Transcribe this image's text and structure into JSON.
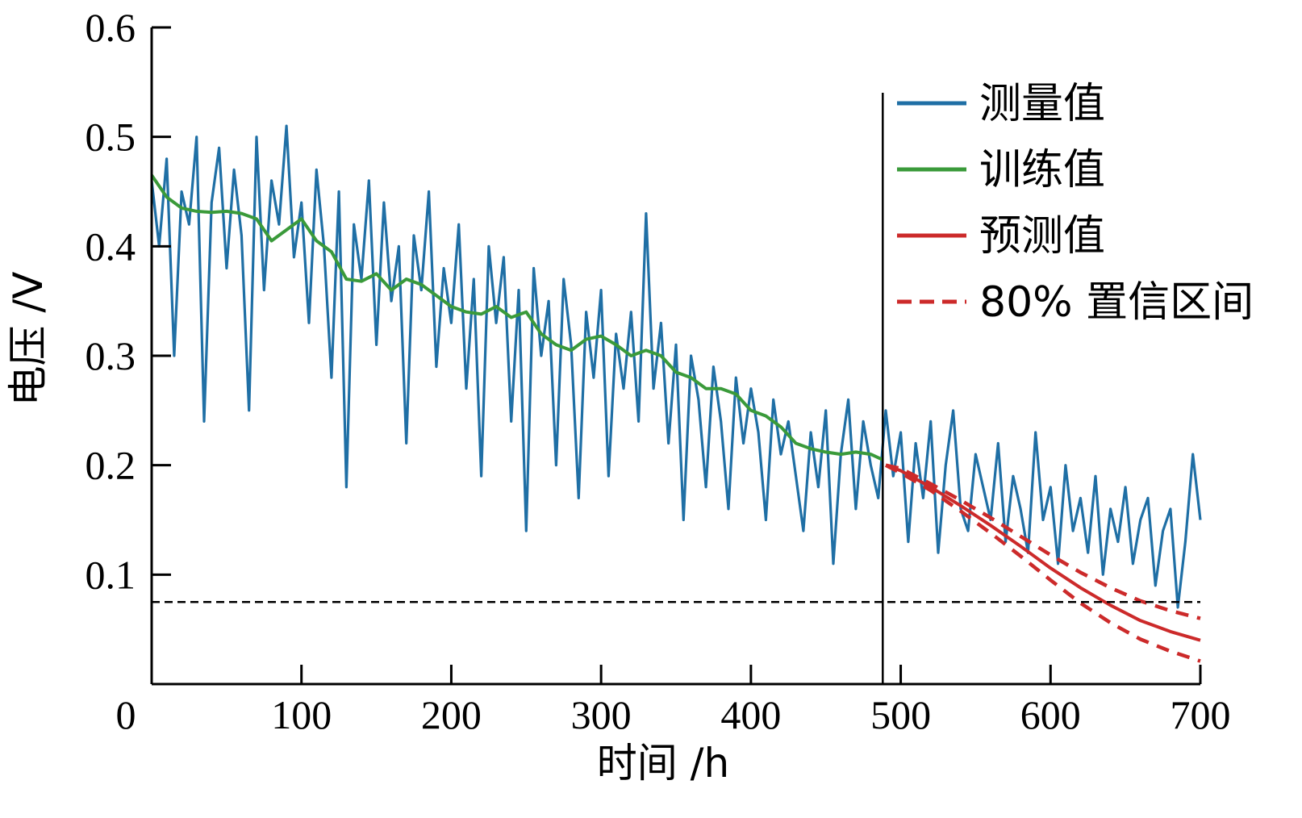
{
  "chart_data": {
    "type": "line",
    "title": "",
    "xlabel": "时间 /h",
    "ylabel": "电压 /V",
    "xlim": [
      0,
      700
    ],
    "ylim": [
      0,
      0.6
    ],
    "x_ticks": [
      0,
      100,
      200,
      300,
      400,
      500,
      600,
      700
    ],
    "y_ticks": [
      0.1,
      0.2,
      0.3,
      0.4,
      0.5,
      0.6
    ],
    "x_tick_labels": [
      "0",
      "100",
      "200",
      "300",
      "400",
      "500",
      "600",
      "700"
    ],
    "y_tick_labels": [
      "0.1",
      "0.2",
      "0.3",
      "0.4",
      "0.5",
      "0.6"
    ],
    "grid": false,
    "legend_position": "top-right",
    "threshold_y": 0.075,
    "split_x": 488,
    "series": [
      {
        "name": "测量值",
        "style": "solid",
        "color": "#1f6fa5",
        "x": [
          0,
          5,
          10,
          15,
          20,
          25,
          30,
          35,
          40,
          45,
          50,
          55,
          60,
          65,
          70,
          75,
          80,
          85,
          90,
          95,
          100,
          105,
          110,
          115,
          120,
          125,
          130,
          135,
          140,
          145,
          150,
          155,
          160,
          165,
          170,
          175,
          180,
          185,
          190,
          195,
          200,
          205,
          210,
          215,
          220,
          225,
          230,
          235,
          240,
          245,
          250,
          255,
          260,
          265,
          270,
          275,
          280,
          285,
          290,
          295,
          300,
          305,
          310,
          315,
          320,
          325,
          330,
          335,
          340,
          345,
          350,
          355,
          360,
          365,
          370,
          375,
          380,
          385,
          390,
          395,
          400,
          405,
          410,
          415,
          420,
          425,
          430,
          435,
          440,
          445,
          450,
          455,
          460,
          465,
          470,
          475,
          480,
          485,
          490,
          495,
          500,
          505,
          510,
          515,
          520,
          525,
          530,
          535,
          540,
          545,
          550,
          555,
          560,
          565,
          570,
          575,
          580,
          585,
          590,
          595,
          600,
          605,
          610,
          615,
          620,
          625,
          630,
          635,
          640,
          645,
          650,
          655,
          660,
          665,
          670,
          675,
          680,
          685,
          690,
          695,
          700
        ],
        "y": [
          0.46,
          0.4,
          0.48,
          0.3,
          0.45,
          0.42,
          0.5,
          0.24,
          0.44,
          0.49,
          0.38,
          0.47,
          0.41,
          0.25,
          0.5,
          0.36,
          0.46,
          0.42,
          0.51,
          0.39,
          0.44,
          0.33,
          0.47,
          0.4,
          0.28,
          0.45,
          0.18,
          0.42,
          0.37,
          0.46,
          0.31,
          0.44,
          0.35,
          0.4,
          0.22,
          0.41,
          0.36,
          0.45,
          0.29,
          0.38,
          0.33,
          0.42,
          0.27,
          0.37,
          0.19,
          0.4,
          0.33,
          0.39,
          0.24,
          0.36,
          0.14,
          0.38,
          0.3,
          0.35,
          0.2,
          0.37,
          0.31,
          0.17,
          0.34,
          0.28,
          0.36,
          0.19,
          0.32,
          0.27,
          0.34,
          0.24,
          0.43,
          0.27,
          0.33,
          0.22,
          0.31,
          0.15,
          0.3,
          0.26,
          0.18,
          0.29,
          0.24,
          0.16,
          0.28,
          0.22,
          0.27,
          0.23,
          0.15,
          0.26,
          0.21,
          0.24,
          0.19,
          0.14,
          0.23,
          0.18,
          0.25,
          0.11,
          0.21,
          0.26,
          0.16,
          0.24,
          0.2,
          0.17,
          0.25,
          0.19,
          0.23,
          0.13,
          0.22,
          0.17,
          0.24,
          0.12,
          0.2,
          0.25,
          0.16,
          0.14,
          0.21,
          0.18,
          0.15,
          0.22,
          0.13,
          0.19,
          0.16,
          0.12,
          0.23,
          0.15,
          0.18,
          0.11,
          0.2,
          0.14,
          0.17,
          0.12,
          0.19,
          0.1,
          0.16,
          0.13,
          0.18,
          0.11,
          0.15,
          0.17,
          0.09,
          0.14,
          0.16,
          0.07,
          0.13,
          0.21,
          0.15
        ]
      },
      {
        "name": "训练值",
        "style": "solid",
        "color": "#3a9a3a",
        "x": [
          0,
          10,
          20,
          30,
          40,
          50,
          60,
          70,
          80,
          90,
          100,
          110,
          120,
          130,
          140,
          150,
          160,
          170,
          180,
          190,
          200,
          210,
          220,
          230,
          240,
          250,
          260,
          270,
          280,
          290,
          300,
          310,
          320,
          330,
          340,
          350,
          360,
          370,
          380,
          390,
          400,
          410,
          420,
          430,
          440,
          450,
          460,
          470,
          480,
          488
        ],
        "y": [
          0.465,
          0.445,
          0.435,
          0.432,
          0.431,
          0.432,
          0.43,
          0.425,
          0.405,
          0.415,
          0.425,
          0.405,
          0.395,
          0.37,
          0.368,
          0.375,
          0.36,
          0.37,
          0.365,
          0.355,
          0.345,
          0.34,
          0.338,
          0.345,
          0.335,
          0.34,
          0.32,
          0.31,
          0.305,
          0.315,
          0.318,
          0.31,
          0.3,
          0.305,
          0.3,
          0.285,
          0.28,
          0.27,
          0.27,
          0.265,
          0.25,
          0.245,
          0.235,
          0.22,
          0.215,
          0.212,
          0.21,
          0.212,
          0.21,
          0.205
        ]
      },
      {
        "name": "预测值",
        "style": "solid",
        "color": "#cc2a2a",
        "x": [
          490,
          500,
          520,
          540,
          560,
          580,
          600,
          620,
          640,
          660,
          680,
          700
        ],
        "y": [
          0.2,
          0.195,
          0.18,
          0.163,
          0.145,
          0.126,
          0.106,
          0.088,
          0.072,
          0.058,
          0.048,
          0.04
        ]
      },
      {
        "name": "80% 置信区间",
        "style": "dashed",
        "color": "#cc2a2a",
        "x": [
          490,
          500,
          520,
          540,
          560,
          580,
          600,
          620,
          640,
          660,
          680,
          700
        ],
        "y": [
          0.2,
          0.197,
          0.183,
          0.168,
          0.152,
          0.135,
          0.118,
          0.102,
          0.088,
          0.076,
          0.067,
          0.06
        ]
      },
      {
        "name": "",
        "style": "dashed",
        "color": "#cc2a2a",
        "x": [
          490,
          500,
          520,
          540,
          560,
          580,
          600,
          620,
          640,
          660,
          680,
          700
        ],
        "y": [
          0.2,
          0.193,
          0.177,
          0.158,
          0.138,
          0.117,
          0.095,
          0.074,
          0.056,
          0.041,
          0.03,
          0.021
        ]
      }
    ]
  }
}
